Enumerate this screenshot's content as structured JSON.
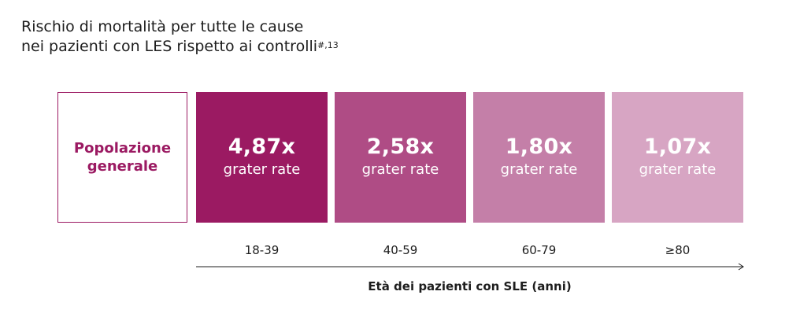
{
  "chart_data": {
    "type": "bar",
    "title_lines": [
      "Rischio di mortalità per tutte le cause",
      "nei pazienti con LES rispetto ai controlli"
    ],
    "title_superscript": "#,13",
    "reference_label": "Popolazione generale",
    "categories": [
      "18-39",
      "40-59",
      "60-79",
      "≥80"
    ],
    "values": [
      4.87,
      2.58,
      1.8,
      1.07
    ],
    "value_labels": [
      "4,87x",
      "2,58x",
      "1,80x",
      "1,07x"
    ],
    "value_sublabel": "grater rate",
    "xlabel": "Età dei pazienti con SLE (anni)",
    "ylabel": "",
    "colors": [
      "#9b1a62",
      "#af4c85",
      "#c47fa8",
      "#d7a5c3"
    ],
    "reference_border_color": "#9b1a62",
    "legend": "none",
    "grid": false
  }
}
